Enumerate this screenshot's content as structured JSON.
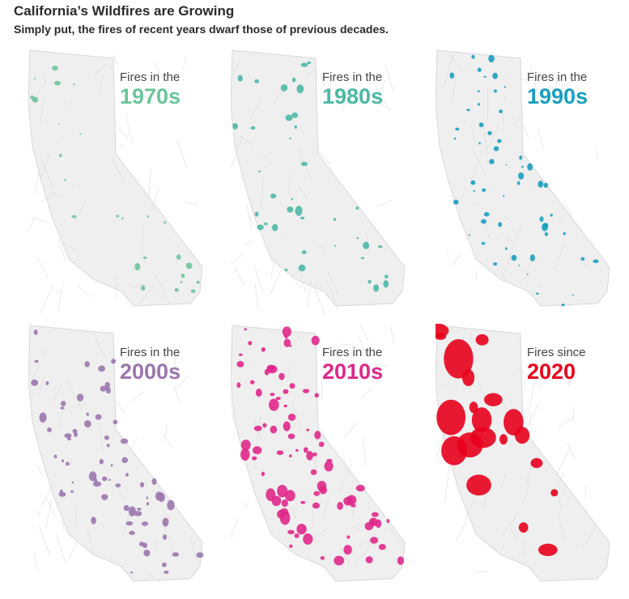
{
  "title": "California’s Wildfires are Growing",
  "subtitle": "Simply put, the fires of recent years dwarf those of previous decades.",
  "panels": [
    {
      "label": "Fires in the",
      "decade": "1970s",
      "color": "#6cc59a"
    },
    {
      "label": "Fires in the",
      "decade": "1980s",
      "color": "#4bb8a6"
    },
    {
      "label": "Fires in the",
      "decade": "1990s",
      "color": "#1a9fbf"
    },
    {
      "label": "Fires in the",
      "decade": "2000s",
      "color": "#9b77ad"
    },
    {
      "label": "Fires in the",
      "decade": "2010s",
      "color": "#e0288a"
    },
    {
      "label": "Fires since",
      "decade": "2020",
      "color": "#e8001c"
    }
  ]
}
